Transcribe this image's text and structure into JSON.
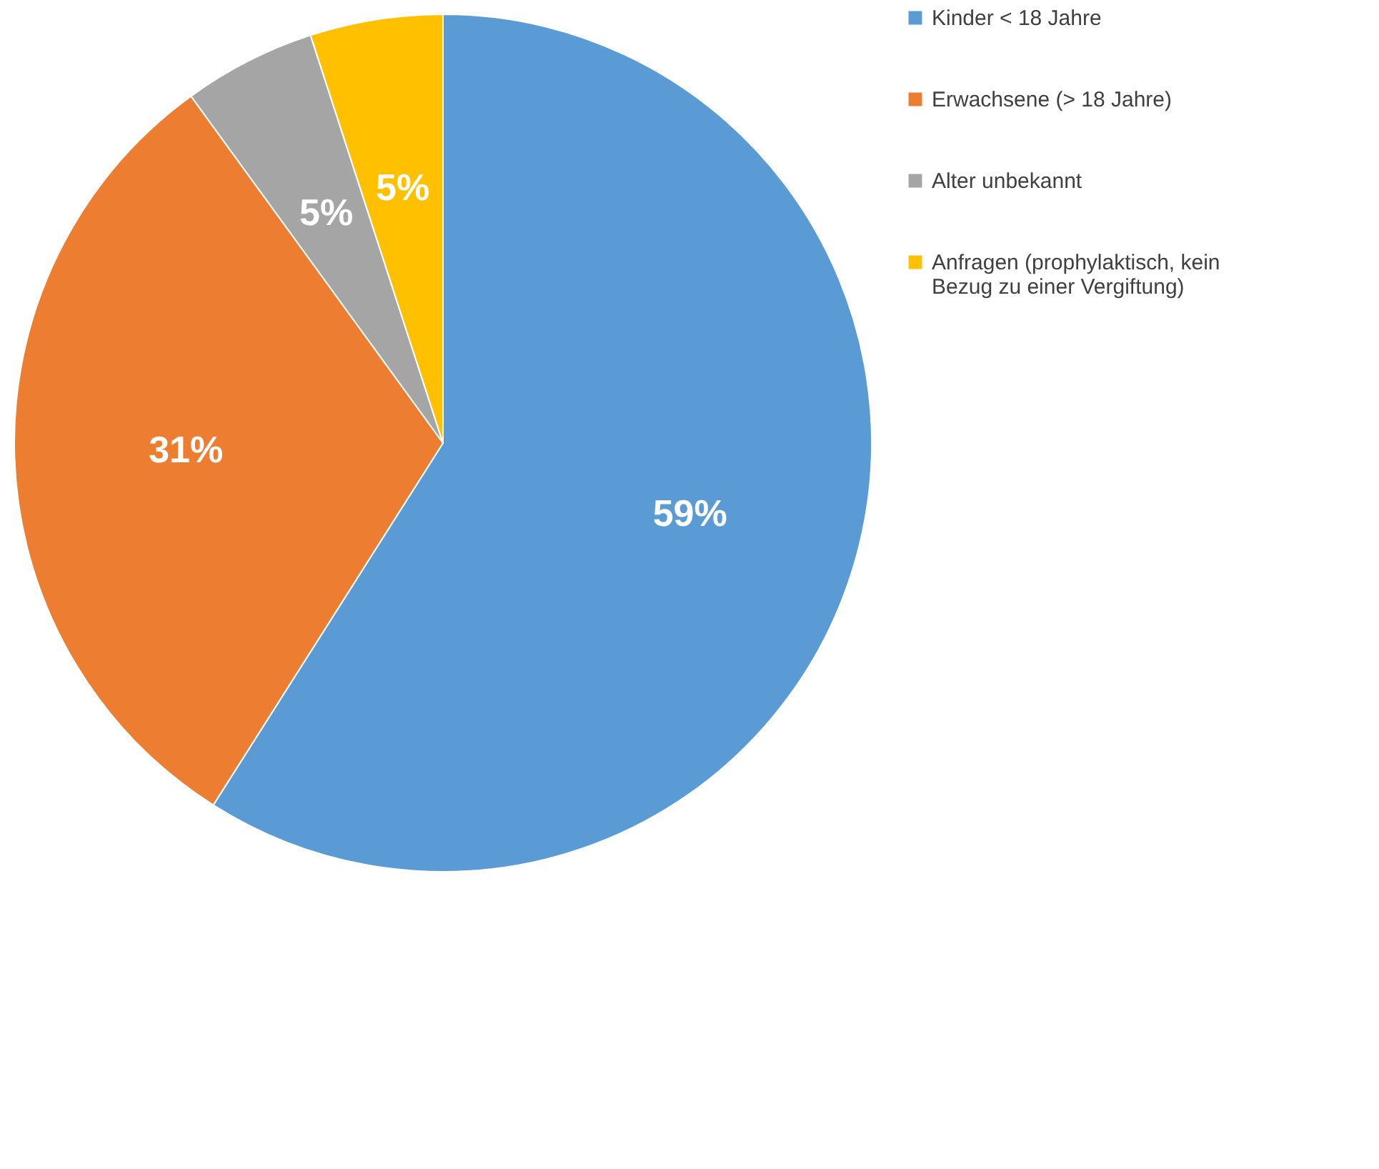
{
  "chart_data": {
    "type": "pie",
    "categories": [
      "Kinder < 18 Jahre",
      "Erwachsene (> 18 Jahre)",
      "Alter unbekannt",
      "Anfragen (prophylaktisch, kein Bezug zu einer Vergiftung)"
    ],
    "values": [
      59,
      31,
      5,
      5
    ],
    "colors": [
      "#5b9bd5",
      "#ed7d31",
      "#a5a5a5",
      "#ffc000"
    ],
    "value_labels": [
      "59%",
      "31%",
      "5%",
      "5%"
    ],
    "legend": "right"
  }
}
